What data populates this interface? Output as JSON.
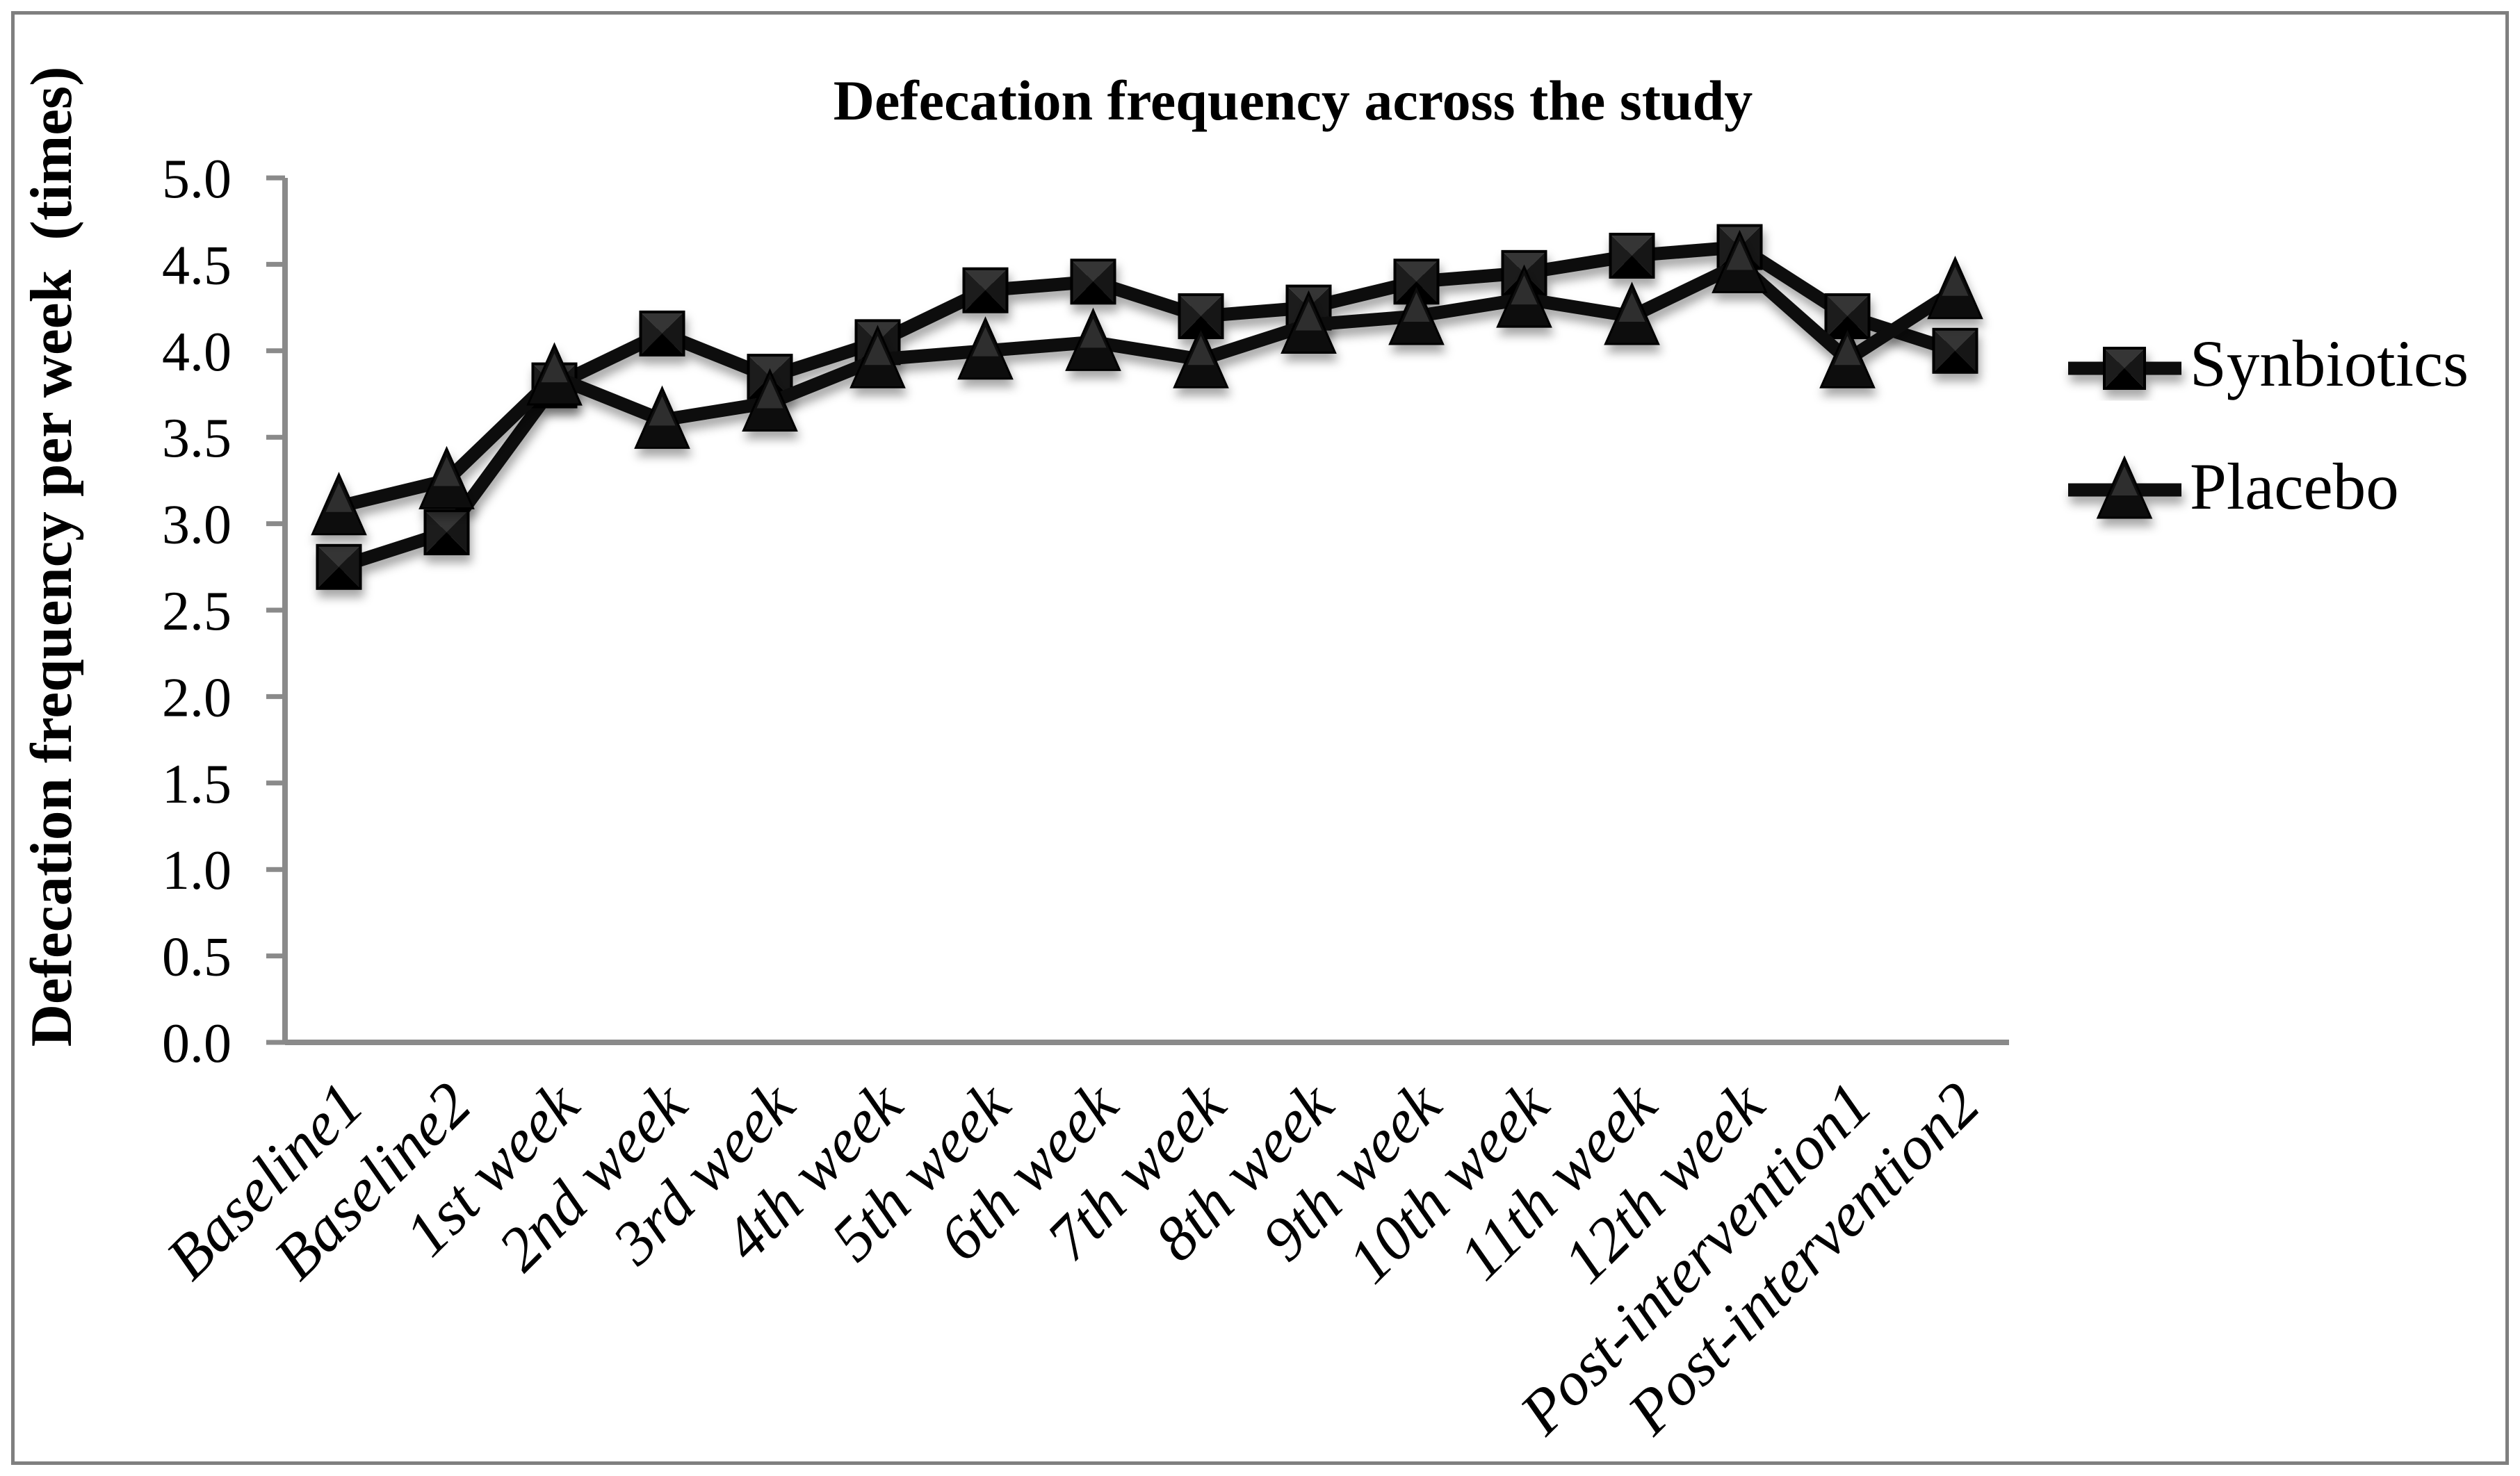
{
  "title": "Defecation frequency across the study",
  "y_axis_title": "Defecation frequency per week  (times)",
  "chart_data": {
    "type": "line",
    "categories": [
      "Baseline1",
      "Baseline2",
      "1st week",
      "2nd week",
      "3rd week",
      "4th week",
      "5th week",
      "6th week",
      "7th week",
      "8th week",
      "9th week",
      "10th week",
      "11th week",
      "12th week",
      "Post-intervention1",
      "Post-intervention2"
    ],
    "series": [
      {
        "name": "Synbiotics",
        "marker": "square",
        "values": [
          2.75,
          2.95,
          3.8,
          4.1,
          3.85,
          4.05,
          4.35,
          4.4,
          4.2,
          4.25,
          4.4,
          4.45,
          4.55,
          4.6,
          4.2,
          4.0
        ]
      },
      {
        "name": "Placebo",
        "marker": "triangle",
        "values": [
          3.1,
          3.25,
          3.85,
          3.6,
          3.7,
          3.95,
          4.0,
          4.05,
          3.95,
          4.15,
          4.2,
          4.3,
          4.2,
          4.5,
          3.95,
          4.35
        ]
      }
    ],
    "ylim": [
      0.0,
      5.0
    ],
    "ytick_step": 0.5,
    "ytick_labels": [
      "0.0",
      "0.5",
      "1.0",
      "1.5",
      "2.0",
      "2.5",
      "3.0",
      "3.5",
      "4.0",
      "4.5",
      "5.0"
    ],
    "grid": false,
    "legend_position": "right"
  },
  "colors": {
    "background": "#ffffff",
    "frame_border": "#7f7f7f",
    "axis": "#8a8a8a",
    "series_line": "#0d0d0d",
    "text": "#000000"
  }
}
